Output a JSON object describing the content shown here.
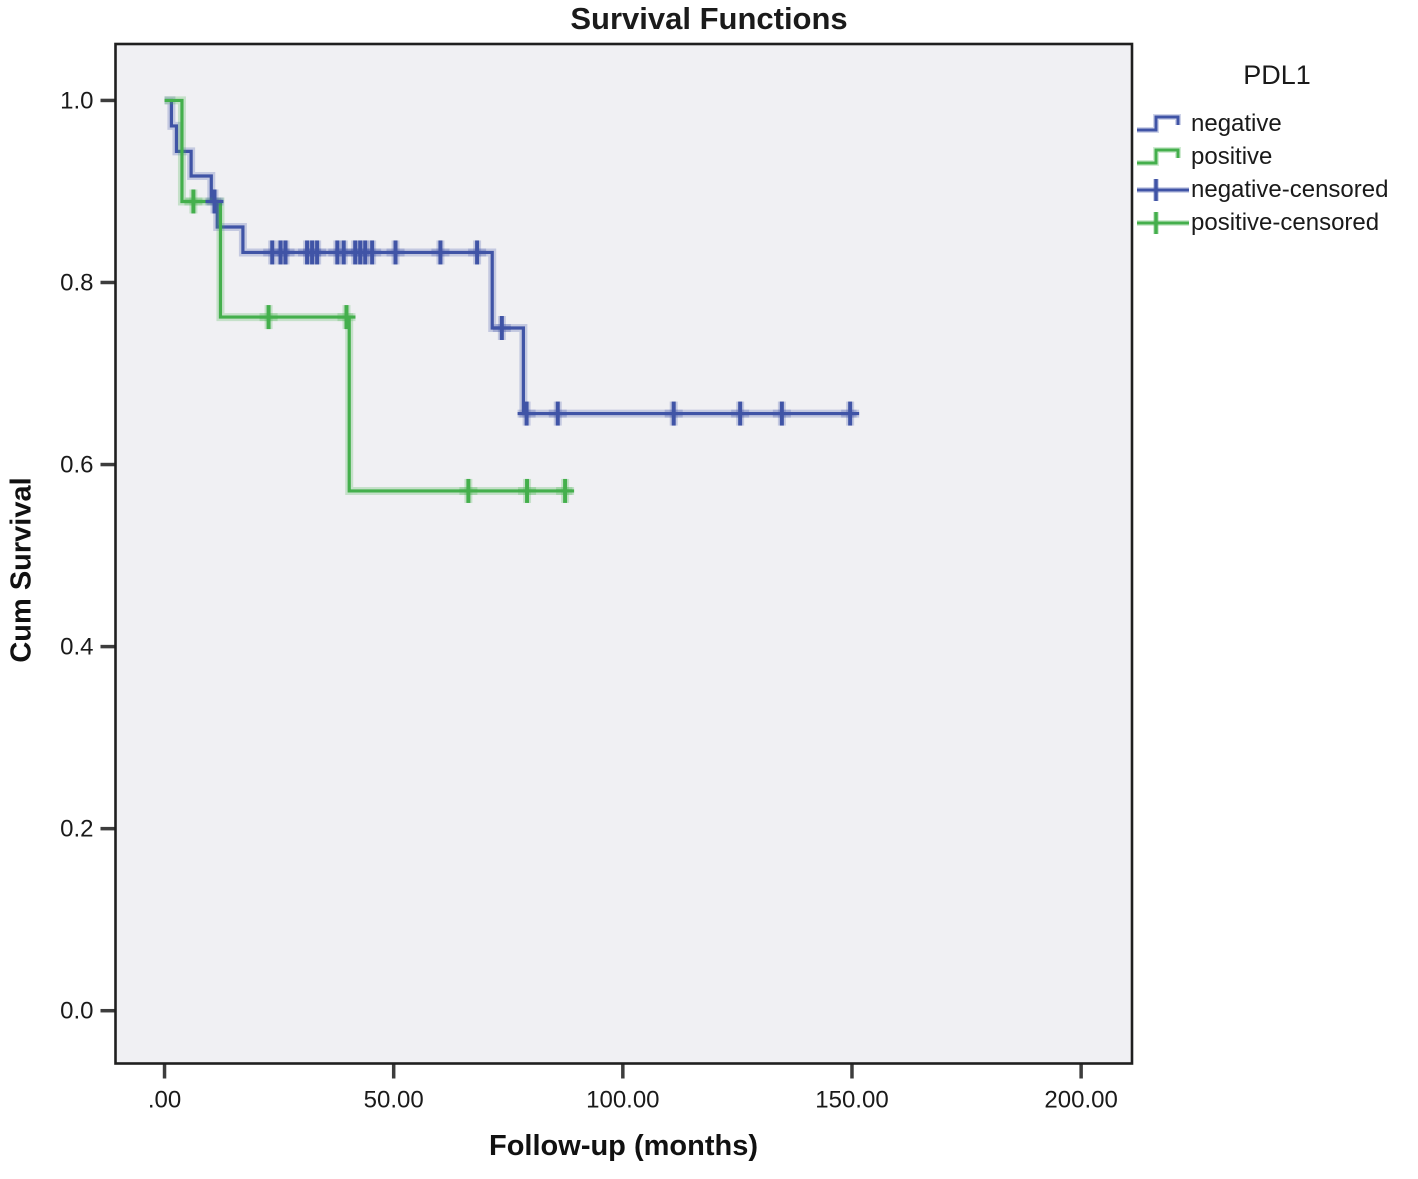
{
  "chart_data": {
    "type": "line",
    "subtype": "kaplan-meier-step",
    "title": "Survival Functions",
    "xlabel": "Follow-up (months)",
    "ylabel": "Cum Survival",
    "grid": false,
    "legend_position": "right-outside",
    "xlim": [
      -10.7,
      211.1
    ],
    "ylim": [
      -0.058,
      1.062
    ],
    "xticks": [
      {
        "value": 0,
        "label": ".00"
      },
      {
        "value": 50,
        "label": "50.00"
      },
      {
        "value": 100,
        "label": "100.00"
      },
      {
        "value": 150,
        "label": "150.00"
      },
      {
        "value": 200,
        "label": "200.00"
      }
    ],
    "yticks": [
      {
        "value": 0.0,
        "label": "0.0"
      },
      {
        "value": 0.2,
        "label": "0.2"
      },
      {
        "value": 0.4,
        "label": "0.4"
      },
      {
        "value": 0.6,
        "label": "0.6"
      },
      {
        "value": 0.8,
        "label": "0.8"
      },
      {
        "value": 1.0,
        "label": "1.0"
      }
    ],
    "legend": {
      "title": "PDL1",
      "items": [
        {
          "label": "negative",
          "color": "#4054A6",
          "symbol": "step"
        },
        {
          "label": "positive",
          "color": "#44AF4C",
          "symbol": "step"
        },
        {
          "label": "negative-censored",
          "color": "#4054A6",
          "symbol": "censor"
        },
        {
          "label": "positive-censored",
          "color": "#44AF4C",
          "symbol": "censor"
        }
      ]
    },
    "series": [
      {
        "name": "negative",
        "color": "#4054A6",
        "steps": [
          [
            0,
            1.0
          ],
          [
            1.5,
            0.972
          ],
          [
            2.6,
            0.944
          ],
          [
            5.8,
            0.917
          ],
          [
            10.2,
            0.889
          ],
          [
            11.5,
            0.861
          ],
          [
            17.1,
            0.833
          ],
          [
            71.5,
            0.75
          ],
          [
            78.3,
            0.656
          ]
        ],
        "end_month": 151,
        "censored": [
          [
            10.9,
            0.889
          ],
          [
            23.5,
            0.833
          ],
          [
            25.3,
            0.833
          ],
          [
            26.4,
            0.833
          ],
          [
            31.1,
            0.833
          ],
          [
            32.2,
            0.833
          ],
          [
            33.3,
            0.833
          ],
          [
            37.7,
            0.833
          ],
          [
            39.1,
            0.833
          ],
          [
            41.6,
            0.833
          ],
          [
            42.7,
            0.833
          ],
          [
            43.8,
            0.833
          ],
          [
            45.3,
            0.833
          ],
          [
            50.4,
            0.833
          ],
          [
            60.2,
            0.833
          ],
          [
            68.2,
            0.833
          ],
          [
            73.6,
            0.75
          ],
          [
            79.0,
            0.656
          ],
          [
            85.8,
            0.656
          ],
          [
            111.1,
            0.656
          ],
          [
            125.6,
            0.656
          ],
          [
            134.7,
            0.656
          ],
          [
            149.6,
            0.656
          ]
        ]
      },
      {
        "name": "positive",
        "color": "#44AF4C",
        "steps": [
          [
            0,
            1.0
          ],
          [
            3.8,
            0.889
          ],
          [
            12.2,
            0.762
          ],
          [
            40.3,
            0.571
          ]
        ],
        "end_month": 89,
        "censored": [
          [
            6.3,
            0.889
          ],
          [
            22.7,
            0.762
          ],
          [
            39.7,
            0.762
          ],
          [
            66.3,
            0.571
          ],
          [
            79.1,
            0.571
          ],
          [
            87.4,
            0.571
          ]
        ]
      }
    ],
    "colors": {
      "plot_background": "#F0F0F3",
      "plot_border": "#1F1F1F",
      "tick": "#3D3D3D",
      "text": "#1A1A1A"
    }
  }
}
